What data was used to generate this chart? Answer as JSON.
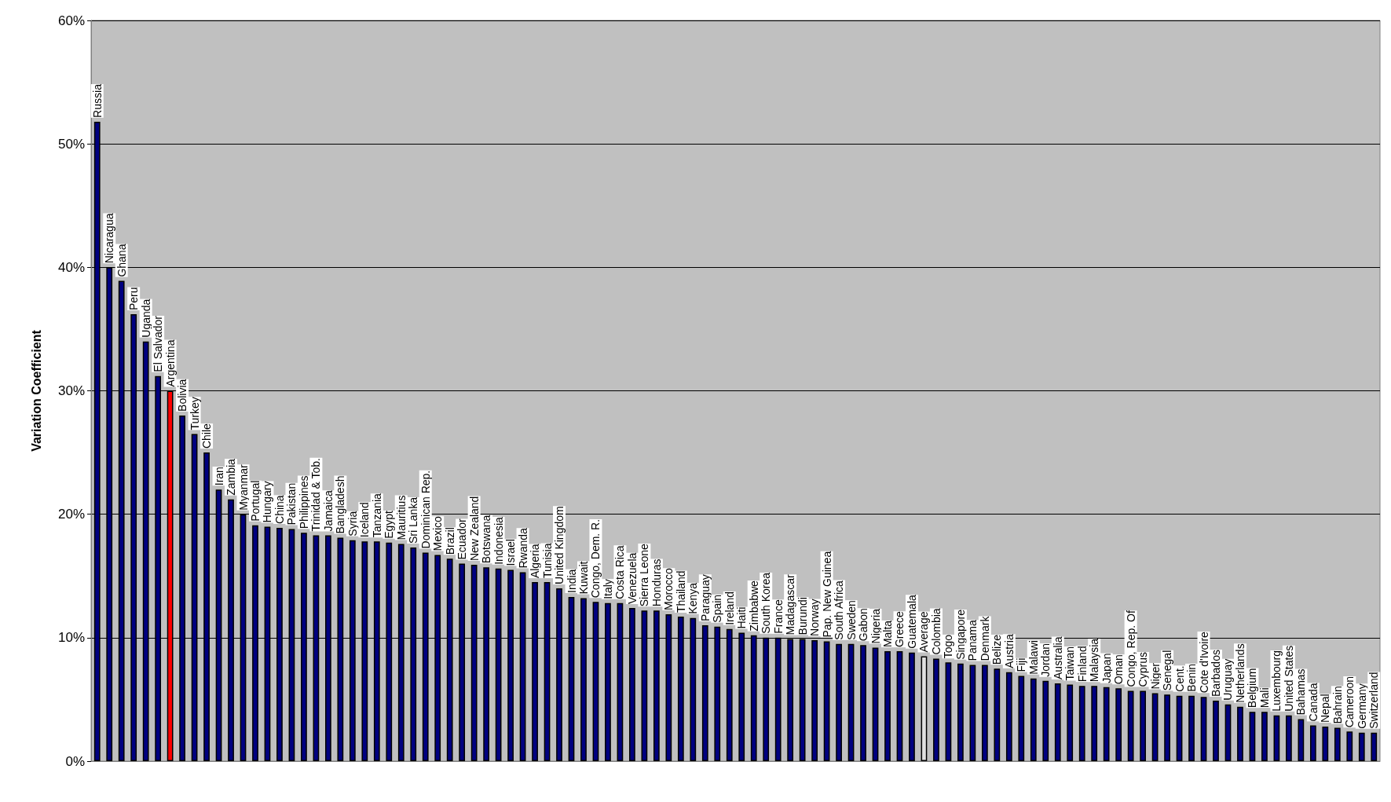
{
  "chart_data": {
    "type": "bar",
    "ylabel": "Variation Coefficient",
    "categories": [
      "Russia",
      "Nicaragua",
      "Ghana",
      "Peru",
      "Uganda",
      "El Salvador",
      "Argentina",
      "Bolivia",
      "Turkey",
      "Chile",
      "Iran",
      "Zambia",
      "Myanmar",
      "Portugal",
      "Hungary",
      "China",
      "Pakistan",
      "Philippines",
      "Trinidad & Tob.",
      "Jamaica",
      "Bangladesh",
      "Syria",
      "Iceland",
      "Tanzania",
      "Egypt",
      "Mauritius",
      "Sri Lanka",
      "Dominican Rep.",
      "Mexico",
      "Brazil",
      "Ecuador",
      "New Zealand",
      "Botswana",
      "Indonesia",
      "Israel",
      "Rwanda",
      "Algeria",
      "Tunisia",
      "United Kingdom",
      "India",
      "Kuwait",
      "Congo, Dem. R.",
      "Italy",
      "Costa Rica",
      "Venezuela",
      "Sierra Leone",
      "Honduras",
      "Morocco",
      "Thailand",
      "Kenya",
      "Paraguay",
      "Spain",
      "Ireland",
      "Haiti",
      "Zimbabwe",
      "South Korea",
      "France",
      "Madagascar",
      "Burundi",
      "Norway",
      "Pap. New Guinea",
      "South Africa",
      "Sweden",
      "Gabon",
      "Nigeria",
      "Malta",
      "Greece",
      "Guatemala",
      "Average",
      "Colombia",
      "Togo",
      "Singapore",
      "Panama",
      "Denmark",
      "Belize",
      "Austria",
      "Fiji",
      "Malawi",
      "Jordan",
      "Australia",
      "Taiwan",
      "Finland",
      "Malaysia",
      "Japan",
      "Oman",
      "Congo, Rep. Of",
      "Cyprus",
      "Niger",
      "Senegal",
      "Cent.",
      "Benin",
      "Cote d'Ivoire",
      "Barbados",
      "Uruguay",
      "Netherlands",
      "Belgium",
      "Mali",
      "Luxembourg",
      "United States",
      "Bahamas",
      "Canada",
      "Nepal",
      "Bahrain",
      "Cameroon",
      "Germany",
      "Switzerland"
    ],
    "values": [
      51.8,
      40.0,
      38.9,
      36.2,
      34.0,
      31.2,
      30.0,
      28.0,
      26.5,
      25.0,
      22.0,
      21.2,
      20.0,
      19.1,
      19.0,
      18.9,
      18.8,
      18.5,
      18.3,
      18.3,
      18.1,
      17.9,
      17.8,
      17.8,
      17.7,
      17.6,
      17.3,
      16.9,
      16.7,
      16.4,
      16.0,
      15.9,
      15.7,
      15.6,
      15.5,
      15.3,
      14.5,
      14.5,
      14.0,
      13.3,
      13.2,
      12.9,
      12.8,
      12.8,
      12.4,
      12.2,
      12.2,
      11.9,
      11.7,
      11.6,
      11.0,
      10.9,
      10.7,
      10.4,
      10.2,
      10.0,
      10.0,
      9.9,
      9.9,
      9.8,
      9.7,
      9.5,
      9.5,
      9.4,
      9.2,
      8.9,
      8.9,
      8.8,
      8.5,
      8.3,
      8.0,
      7.9,
      7.8,
      7.8,
      7.5,
      7.2,
      6.9,
      6.7,
      6.5,
      6.3,
      6.2,
      6.1,
      6.1,
      6.0,
      5.9,
      5.7,
      5.7,
      5.5,
      5.4,
      5.3,
      5.3,
      5.2,
      4.9,
      4.6,
      4.4,
      4.0,
      4.0,
      3.7,
      3.7,
      3.4,
      2.9,
      2.8,
      2.7,
      2.4,
      2.3,
      2.3
    ],
    "colors": [
      "#000080",
      "#000080",
      "#000080",
      "#000080",
      "#000080",
      "#000080",
      "#ff0000",
      "#000080",
      "#000080",
      "#000080",
      "#000080",
      "#000080",
      "#000080",
      "#000080",
      "#000080",
      "#000080",
      "#000080",
      "#000080",
      "#000080",
      "#000080",
      "#000080",
      "#000080",
      "#000080",
      "#000080",
      "#000080",
      "#000080",
      "#000080",
      "#000080",
      "#000080",
      "#000080",
      "#000080",
      "#000080",
      "#000080",
      "#000080",
      "#000080",
      "#000080",
      "#000080",
      "#000080",
      "#000080",
      "#000080",
      "#000080",
      "#000080",
      "#000080",
      "#000080",
      "#000080",
      "#000080",
      "#000080",
      "#000080",
      "#000080",
      "#000080",
      "#000080",
      "#000080",
      "#000080",
      "#000080",
      "#000080",
      "#000080",
      "#000080",
      "#000080",
      "#000080",
      "#000080",
      "#000080",
      "#000080",
      "#000080",
      "#000080",
      "#000080",
      "#000080",
      "#000080",
      "#000080",
      "#e0e0e0",
      "#000080",
      "#000080",
      "#000080",
      "#000080",
      "#000080",
      "#000080",
      "#000080",
      "#000080",
      "#000080",
      "#000080",
      "#000080",
      "#000080",
      "#000080",
      "#000080",
      "#000080",
      "#000080",
      "#000080",
      "#000080",
      "#000080",
      "#000080",
      "#000080",
      "#000080",
      "#000080",
      "#000080",
      "#000080",
      "#000080",
      "#000080",
      "#000080",
      "#000080",
      "#000080",
      "#000080",
      "#000080",
      "#000080",
      "#000080",
      "#000080",
      "#000080",
      "#000080"
    ],
    "ylim": [
      0,
      60
    ],
    "yticks": [
      {
        "value": 0,
        "label": "0%"
      },
      {
        "value": 10,
        "label": "10%"
      },
      {
        "value": 20,
        "label": "20%"
      },
      {
        "value": 30,
        "label": "30%"
      },
      {
        "value": 40,
        "label": "40%"
      },
      {
        "value": 50,
        "label": "50%"
      },
      {
        "value": 60,
        "label": "60%"
      }
    ],
    "grid": "y",
    "tick_labels": "y"
  }
}
